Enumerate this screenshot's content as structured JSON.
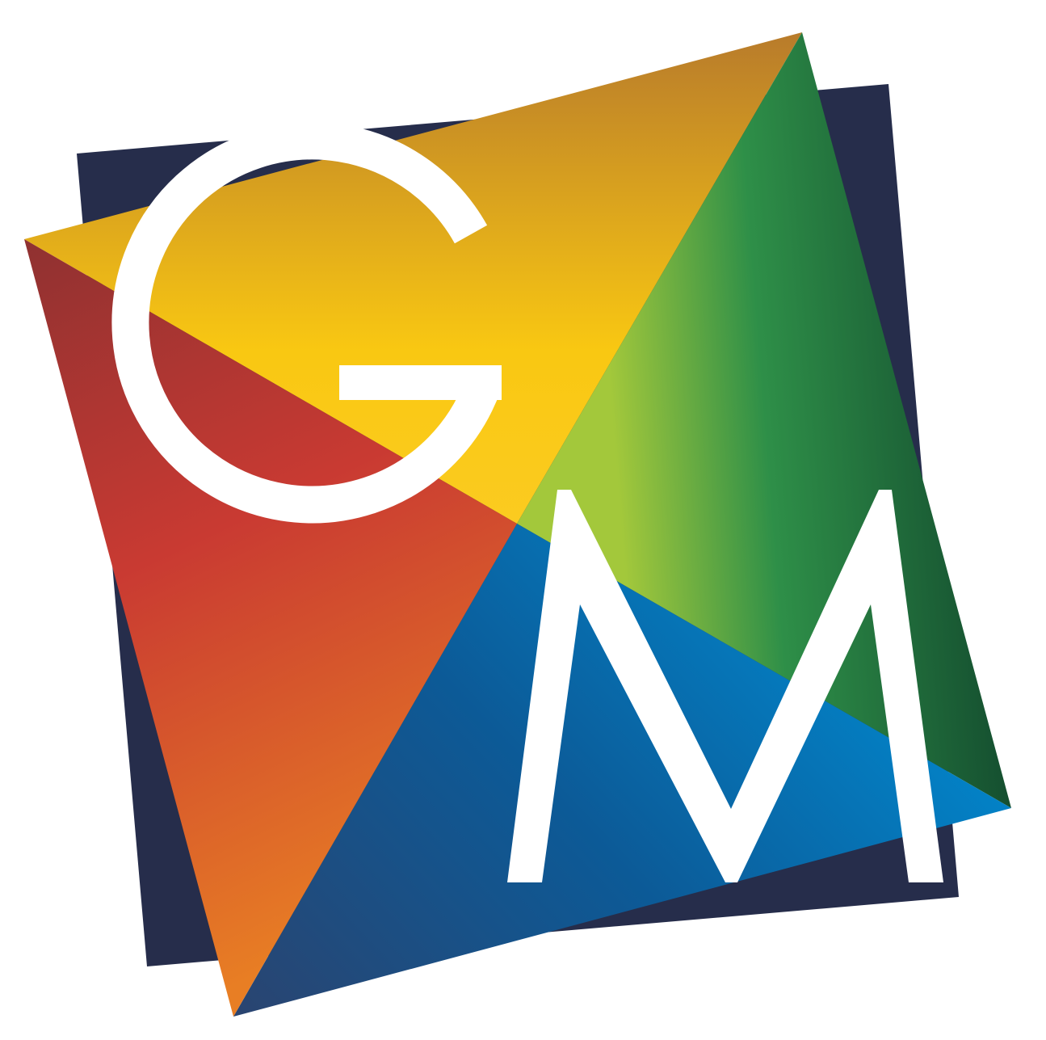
{
  "logo": {
    "letters": [
      "G",
      "M"
    ],
    "colors": {
      "background_square": "#262d4b",
      "letter_fill": "#ffffff",
      "top_panel": [
        "#b87b2b",
        "#f9c812"
      ],
      "left_panel": [
        "#8f3131",
        "#c93a32",
        "#e57627"
      ],
      "right_panel": [
        "#a3c83b",
        "#2e8f48",
        "#11452c"
      ],
      "bottom_panel": [
        "#26466f",
        "#0c5a97",
        "#0188cd"
      ]
    }
  }
}
